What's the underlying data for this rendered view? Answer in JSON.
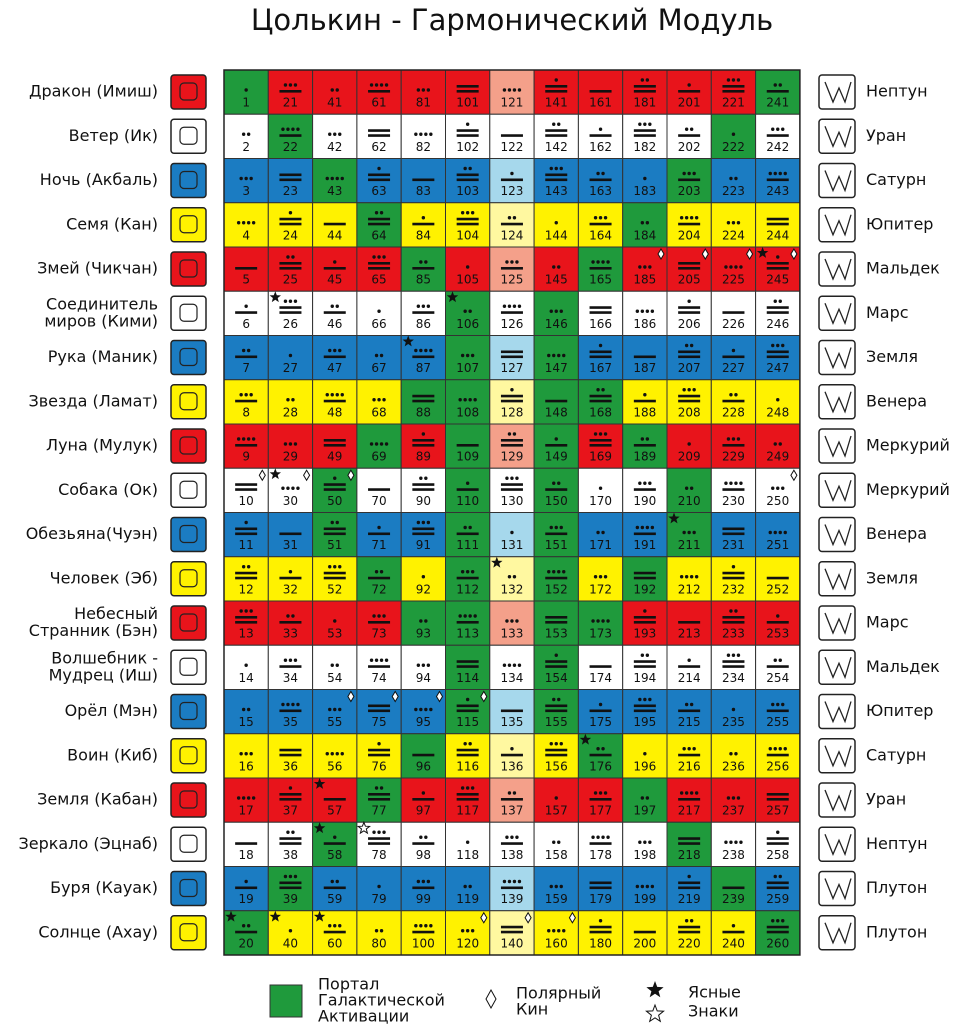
{
  "title": "Цолькин - Гармонический Модуль",
  "colors": {
    "portal": "#1f9a3c"
  },
  "rows": [
    {
      "name": [
        "Дракон (Имиш)"
      ],
      "planet": "Нептун",
      "color": "#e8141b",
      "center_color": "#f4a08a",
      "kins": [
        1,
        21,
        41,
        61,
        81,
        101,
        121,
        141,
        161,
        181,
        201,
        221,
        241
      ],
      "tones": [
        1,
        8,
        2,
        9,
        3,
        10,
        4,
        11,
        5,
        12,
        6,
        13,
        7
      ]
    },
    {
      "name": [
        "Ветер (Ик)"
      ],
      "planet": "Уран",
      "color": "#ffffff",
      "center_color": "#ffffff",
      "kins": [
        2,
        22,
        42,
        62,
        82,
        102,
        122,
        142,
        162,
        182,
        202,
        222,
        242
      ],
      "tones": [
        2,
        9,
        3,
        10,
        4,
        11,
        5,
        12,
        6,
        13,
        7,
        1,
        8
      ]
    },
    {
      "name": [
        "Ночь (Акбаль)"
      ],
      "planet": "Сатурн",
      "color": "#1b7cc2",
      "center_color": "#a6d8ec",
      "kins": [
        3,
        23,
        43,
        63,
        83,
        103,
        123,
        143,
        163,
        183,
        203,
        223,
        243
      ],
      "tones": [
        3,
        10,
        4,
        11,
        5,
        12,
        6,
        13,
        7,
        1,
        8,
        2,
        9
      ]
    },
    {
      "name": [
        "Семя (Кан)"
      ],
      "planet": "Юпитер",
      "color": "#fff200",
      "center_color": "#fff8a0",
      "kins": [
        4,
        24,
        44,
        64,
        84,
        104,
        124,
        144,
        164,
        184,
        204,
        224,
        244
      ],
      "tones": [
        4,
        11,
        5,
        12,
        6,
        13,
        7,
        1,
        8,
        2,
        9,
        3,
        10
      ]
    },
    {
      "name": [
        "Змей (Чикчан)"
      ],
      "planet": "Мальдек",
      "color": "#e8141b",
      "center_color": "#f4a08a",
      "kins": [
        5,
        25,
        45,
        65,
        85,
        105,
        125,
        145,
        165,
        185,
        205,
        225,
        245
      ],
      "tones": [
        5,
        12,
        6,
        13,
        7,
        1,
        8,
        2,
        9,
        3,
        10,
        4,
        11
      ]
    },
    {
      "name": [
        "Соединитель",
        "миров (Кими)"
      ],
      "planet": "Марс",
      "color": "#ffffff",
      "center_color": "#ffffff",
      "kins": [
        6,
        26,
        46,
        66,
        86,
        106,
        126,
        146,
        166,
        186,
        206,
        226,
        246
      ],
      "tones": [
        6,
        13,
        7,
        1,
        8,
        2,
        9,
        3,
        10,
        4,
        11,
        5,
        12
      ]
    },
    {
      "name": [
        "Рука (Маник)"
      ],
      "planet": "Земля",
      "color": "#1b7cc2",
      "center_color": "#a6d8ec",
      "kins": [
        7,
        27,
        47,
        67,
        87,
        107,
        127,
        147,
        167,
        187,
        207,
        227,
        247
      ],
      "tones": [
        7,
        1,
        8,
        2,
        9,
        3,
        10,
        4,
        11,
        5,
        12,
        6,
        13
      ]
    },
    {
      "name": [
        "Звезда (Ламат)"
      ],
      "planet": "Венера",
      "color": "#fff200",
      "center_color": "#fff8a0",
      "kins": [
        8,
        28,
        48,
        68,
        88,
        108,
        128,
        148,
        168,
        188,
        208,
        228,
        248
      ],
      "tones": [
        8,
        2,
        9,
        3,
        10,
        4,
        11,
        5,
        12,
        6,
        13,
        7,
        1
      ]
    },
    {
      "name": [
        "Луна (Мулук)"
      ],
      "planet": "Меркурий",
      "color": "#e8141b",
      "center_color": "#f4a08a",
      "kins": [
        9,
        29,
        49,
        69,
        89,
        109,
        129,
        149,
        169,
        189,
        209,
        229,
        249
      ],
      "tones": [
        9,
        3,
        10,
        4,
        11,
        5,
        12,
        6,
        13,
        7,
        1,
        8,
        2
      ]
    },
    {
      "name": [
        "Собака (Ок)"
      ],
      "planet": "Меркурий",
      "color": "#ffffff",
      "center_color": "#ffffff",
      "kins": [
        10,
        30,
        50,
        70,
        90,
        110,
        130,
        150,
        170,
        190,
        210,
        230,
        250
      ],
      "tones": [
        10,
        4,
        11,
        5,
        12,
        6,
        13,
        7,
        1,
        8,
        2,
        9,
        3
      ]
    },
    {
      "name": [
        "Обезьяна(Чуэн)"
      ],
      "planet": "Венера",
      "color": "#1b7cc2",
      "center_color": "#a6d8ec",
      "kins": [
        11,
        31,
        51,
        71,
        91,
        111,
        131,
        151,
        171,
        191,
        211,
        231,
        251
      ],
      "tones": [
        11,
        5,
        12,
        6,
        13,
        7,
        1,
        8,
        2,
        9,
        3,
        10,
        4
      ]
    },
    {
      "name": [
        "Человек (Эб)"
      ],
      "planet": "Земля",
      "color": "#fff200",
      "center_color": "#fff8a0",
      "kins": [
        12,
        32,
        52,
        72,
        92,
        112,
        132,
        152,
        172,
        192,
        212,
        232,
        252
      ],
      "tones": [
        12,
        6,
        13,
        7,
        1,
        8,
        2,
        9,
        3,
        10,
        4,
        11,
        5
      ]
    },
    {
      "name": [
        "Небесный",
        "Странник (Бэн)"
      ],
      "planet": "Марс",
      "color": "#e8141b",
      "center_color": "#f4a08a",
      "kins": [
        13,
        33,
        53,
        73,
        93,
        113,
        133,
        153,
        173,
        193,
        213,
        233,
        253
      ],
      "tones": [
        13,
        7,
        1,
        8,
        2,
        9,
        3,
        10,
        4,
        11,
        5,
        12,
        6
      ]
    },
    {
      "name": [
        "Волшебник -",
        "Мудрец (Иш)"
      ],
      "planet": "Мальдек",
      "color": "#ffffff",
      "center_color": "#ffffff",
      "kins": [
        14,
        34,
        54,
        74,
        94,
        114,
        134,
        154,
        174,
        194,
        214,
        234,
        254
      ],
      "tones": [
        1,
        8,
        2,
        9,
        3,
        10,
        4,
        11,
        5,
        12,
        6,
        13,
        7
      ]
    },
    {
      "name": [
        "Орёл (Мэн)"
      ],
      "planet": "Юпитер",
      "color": "#1b7cc2",
      "center_color": "#a6d8ec",
      "kins": [
        15,
        35,
        55,
        75,
        95,
        115,
        135,
        155,
        175,
        195,
        215,
        235,
        255
      ],
      "tones": [
        2,
        9,
        3,
        10,
        4,
        11,
        5,
        12,
        6,
        13,
        7,
        1,
        8
      ]
    },
    {
      "name": [
        "Воин (Киб)"
      ],
      "planet": "Сатурн",
      "color": "#fff200",
      "center_color": "#fff8a0",
      "kins": [
        16,
        36,
        56,
        76,
        96,
        116,
        136,
        156,
        176,
        196,
        216,
        236,
        256
      ],
      "tones": [
        3,
        10,
        4,
        11,
        5,
        12,
        6,
        13,
        7,
        1,
        8,
        2,
        9
      ]
    },
    {
      "name": [
        "Земля (Кабан)"
      ],
      "planet": "Уран",
      "color": "#e8141b",
      "center_color": "#f4a08a",
      "kins": [
        17,
        37,
        57,
        77,
        97,
        117,
        137,
        157,
        177,
        197,
        217,
        237,
        257
      ],
      "tones": [
        4,
        11,
        5,
        12,
        6,
        13,
        7,
        1,
        8,
        2,
        9,
        3,
        10
      ]
    },
    {
      "name": [
        "Зеркало (Эцнаб)"
      ],
      "planet": "Нептун",
      "color": "#ffffff",
      "center_color": "#ffffff",
      "kins": [
        18,
        38,
        58,
        78,
        98,
        118,
        138,
        158,
        178,
        198,
        218,
        238,
        258
      ],
      "tones": [
        5,
        12,
        6,
        13,
        7,
        1,
        8,
        2,
        9,
        3,
        10,
        4,
        11
      ]
    },
    {
      "name": [
        "Буря (Кауак)"
      ],
      "planet": "Плутон",
      "color": "#1b7cc2",
      "center_color": "#a6d8ec",
      "kins": [
        19,
        39,
        59,
        79,
        99,
        119,
        139,
        159,
        179,
        199,
        219,
        239,
        259
      ],
      "tones": [
        6,
        13,
        7,
        1,
        8,
        2,
        9,
        3,
        10,
        4,
        11,
        5,
        12
      ]
    },
    {
      "name": [
        "Солнце (Ахау)"
      ],
      "planet": "Плутон",
      "color": "#fff200",
      "center_color": "#fff8a0",
      "kins": [
        20,
        40,
        60,
        80,
        100,
        120,
        140,
        160,
        180,
        200,
        220,
        240,
        260
      ],
      "tones": [
        7,
        1,
        8,
        2,
        9,
        3,
        10,
        4,
        11,
        5,
        12,
        6,
        13
      ]
    }
  ],
  "portal": [
    1,
    20,
    22,
    39,
    43,
    50,
    51,
    58,
    64,
    69,
    72,
    77,
    85,
    88,
    93,
    96,
    106,
    107,
    108,
    109,
    110,
    111,
    112,
    113,
    114,
    115,
    146,
    147,
    148,
    149,
    150,
    151,
    152,
    153,
    154,
    155,
    165,
    168,
    173,
    176,
    184,
    189,
    192,
    197,
    203,
    210,
    211,
    218,
    222,
    239,
    241,
    260
  ],
  "polar": [
    185,
    205,
    225,
    245,
    10,
    30,
    50,
    250,
    55,
    75,
    95,
    115,
    120,
    140,
    160
  ],
  "clear_signs": [
    245,
    26,
    106,
    87,
    30,
    211,
    132,
    176,
    57,
    58,
    20,
    40,
    60
  ],
  "clear_signs_hollow": [
    78
  ],
  "legend": {
    "portal": [
      "Портал",
      "Галактической",
      "Активации"
    ],
    "polar": [
      "Полярный",
      "Кин"
    ],
    "clear": [
      "Ясные",
      "Знаки"
    ]
  }
}
